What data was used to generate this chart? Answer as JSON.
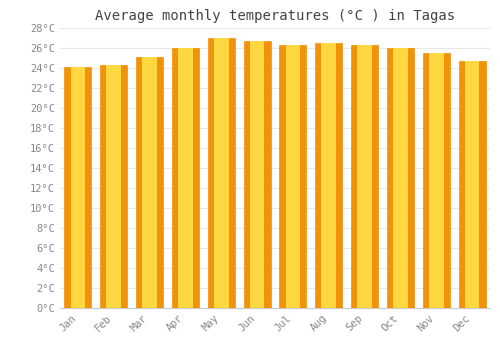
{
  "title": "Average monthly temperatures (°C ) in Tagas",
  "months": [
    "Jan",
    "Feb",
    "Mar",
    "Apr",
    "May",
    "Jun",
    "Jul",
    "Aug",
    "Sep",
    "Oct",
    "Nov",
    "Dec"
  ],
  "values": [
    24.1,
    24.3,
    25.1,
    26.0,
    27.0,
    26.7,
    26.3,
    26.5,
    26.3,
    26.0,
    25.5,
    24.7
  ],
  "bar_color_center": "#FFD740",
  "bar_color_edge": "#F0920A",
  "background_color": "#ffffff",
  "grid_color": "#e8e8e8",
  "tick_label_color": "#888888",
  "title_color": "#444444",
  "ylim": [
    0,
    28
  ],
  "ytick_step": 2,
  "title_fontsize": 10,
  "tick_fontsize": 7.5,
  "bar_width": 0.75
}
